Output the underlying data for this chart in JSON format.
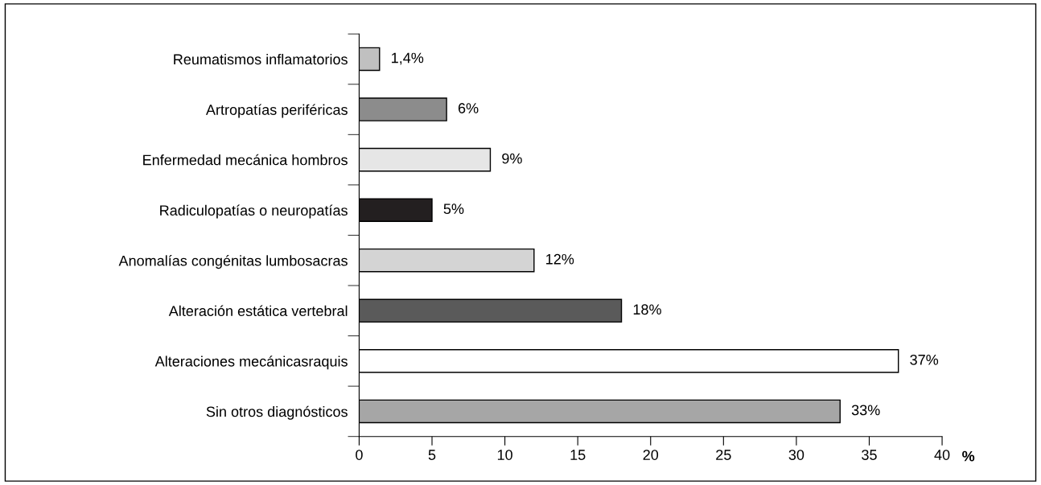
{
  "chart_data": {
    "type": "bar",
    "orientation": "horizontal",
    "categories": [
      "Reumatismos inflamatorios",
      "Artropatías periféricas",
      "Enfermedad mecánica hombros",
      "Radiculopatías o neuropatías",
      "Anomalías congénitas lumbosacras",
      "Alteración estática vertebral",
      "Alteraciones mecánicasraquis",
      "Sin otros diagnósticos"
    ],
    "values": [
      1.4,
      6,
      9,
      5,
      12,
      18,
      37,
      33
    ],
    "value_labels": [
      "1,4%",
      "6%",
      "9%",
      "5%",
      "12%",
      "18%",
      "37%",
      "33%"
    ],
    "colors": [
      "#c0c0c0",
      "#8c8c8c",
      "#e6e6e6",
      "#231f20",
      "#d4d4d4",
      "#5a5a5a",
      "#ffffff",
      "#a6a6a6"
    ],
    "xlabel": "%",
    "xlim": [
      0,
      40
    ],
    "xticks": [
      0,
      5,
      10,
      15,
      20,
      25,
      30,
      35,
      40
    ],
    "grid": false,
    "legend": false
  }
}
